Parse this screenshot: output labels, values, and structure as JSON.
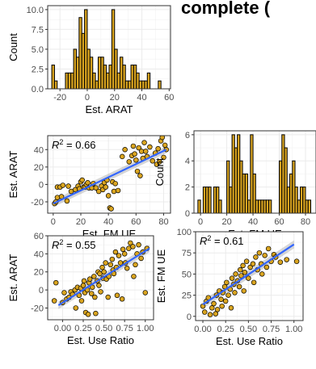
{
  "header_fragment": "complete (",
  "colors": {
    "bar_fill": "#DAA520",
    "bar_stroke": "#000000",
    "point_fill": "#DAA520",
    "fit_line": "#3366FF",
    "ribbon": "#999999",
    "grid": "#EBEBEB",
    "panel_border": "#333333"
  },
  "chart_data": [
    {
      "id": "hist_arat",
      "type": "bar",
      "subtype": "histogram",
      "xlabel": "Est. ARAT",
      "ylabel": "Count",
      "xlim": [
        -29,
        61
      ],
      "ylim": [
        0,
        10.5
      ],
      "xticks": [
        -20,
        0,
        20,
        40,
        60
      ],
      "yticks": [
        0.0,
        2.5,
        5.0,
        7.5,
        10.0
      ],
      "ytick_labels": [
        "0.0",
        "2.5",
        "5.0",
        "7.5",
        "10.0"
      ],
      "bin_width": 2,
      "bin_start": -26,
      "counts": [
        3,
        1,
        0,
        0,
        0,
        2,
        2,
        2,
        5,
        4,
        9,
        7,
        10,
        5,
        4,
        2,
        1,
        4,
        4,
        3,
        2,
        3,
        10,
        5,
        2,
        4,
        3,
        1,
        1,
        3,
        3,
        2,
        1,
        1,
        1,
        2,
        0,
        0,
        0,
        1,
        0,
        0
      ]
    },
    {
      "id": "scatter_fm_arat",
      "type": "scatter",
      "xlabel": "Est. FM UE",
      "ylabel": "Est. ARAT",
      "annotation": "R² = 0.66",
      "r2_prefix": "R",
      "r2_sup": "2",
      "r2_value": " = 0.66",
      "xlim": [
        -4,
        85
      ],
      "ylim": [
        -33,
        56
      ],
      "xticks": [
        0,
        20,
        40,
        60,
        80
      ],
      "yticks": [
        -20,
        0,
        20,
        40
      ],
      "fit": {
        "x0": 0,
        "y0": -22,
        "x1": 82,
        "y1": 40
      },
      "points": [
        [
          1,
          -22
        ],
        [
          2,
          -20
        ],
        [
          3,
          -3
        ],
        [
          3,
          -15
        ],
        [
          5,
          -3
        ],
        [
          6,
          -14
        ],
        [
          7,
          -1
        ],
        [
          10,
          -19
        ],
        [
          11,
          -2
        ],
        [
          13,
          -8
        ],
        [
          16,
          -6
        ],
        [
          18,
          -2
        ],
        [
          19,
          -5
        ],
        [
          20,
          3
        ],
        [
          21,
          5
        ],
        [
          22,
          -3
        ],
        [
          23,
          -3
        ],
        [
          24,
          0
        ],
        [
          25,
          2
        ],
        [
          26,
          -4
        ],
        [
          28,
          -4
        ],
        [
          29,
          1
        ],
        [
          31,
          -4
        ],
        [
          33,
          -8
        ],
        [
          35,
          -2
        ],
        [
          36,
          -6
        ],
        [
          37,
          2
        ],
        [
          38,
          -3
        ],
        [
          39,
          5
        ],
        [
          40,
          -13
        ],
        [
          41,
          -27
        ],
        [
          42,
          -28
        ],
        [
          43,
          3
        ],
        [
          44,
          -8
        ],
        [
          45,
          1
        ],
        [
          47,
          -7
        ],
        [
          50,
          32
        ],
        [
          52,
          40
        ],
        [
          55,
          26
        ],
        [
          57,
          33
        ],
        [
          58,
          44
        ],
        [
          59,
          35
        ],
        [
          60,
          28
        ],
        [
          61,
          15
        ],
        [
          62,
          42
        ],
        [
          63,
          10
        ],
        [
          64,
          38
        ],
        [
          65,
          30
        ],
        [
          66,
          48
        ],
        [
          67,
          38
        ],
        [
          68,
          32
        ],
        [
          70,
          43
        ],
        [
          72,
          27
        ],
        [
          74,
          36
        ],
        [
          75,
          23
        ],
        [
          76,
          41
        ],
        [
          77,
          26
        ],
        [
          78,
          50
        ],
        [
          79,
          54
        ],
        [
          80,
          31
        ],
        [
          81,
          45
        ],
        [
          82,
          40
        ]
      ]
    },
    {
      "id": "hist_fm",
      "type": "bar",
      "subtype": "histogram",
      "xlabel": "Est. FM UE",
      "ylabel": "Count",
      "xlim": [
        -5,
        88
      ],
      "ylim": [
        0,
        6.3
      ],
      "xticks": [
        0,
        20,
        40,
        60,
        80
      ],
      "yticks": [
        0,
        2,
        4,
        6
      ],
      "ytick_labels": [
        "0",
        "2",
        "4",
        "6"
      ],
      "bin_width": 2,
      "bin_start": -2,
      "counts": [
        1,
        0,
        2,
        2,
        2,
        0,
        2,
        2,
        1,
        0,
        0,
        4,
        2,
        6,
        5,
        6,
        4,
        3,
        3,
        1,
        6,
        3,
        1,
        1,
        1,
        1,
        1,
        1,
        0,
        0,
        0,
        4,
        6,
        5,
        2,
        3,
        4,
        2,
        1,
        2,
        2,
        1,
        1
      ]
    },
    {
      "id": "scatter_use_arat",
      "type": "scatter",
      "xlabel": "Est. Use Ratio",
      "ylabel": "Est. ARAT",
      "annotation": "R² = 0.55",
      "r2_prefix": "R",
      "r2_sup": "2",
      "r2_value": " = 0.55",
      "xlim": [
        -0.18,
        1.1
      ],
      "ylim": [
        -33,
        60
      ],
      "xticks": [
        0.0,
        0.25,
        0.5,
        0.75,
        1.0
      ],
      "xtick_labels": [
        "0.00",
        "0.25",
        "0.50",
        "0.75",
        "1.00"
      ],
      "yticks": [
        -20,
        0,
        20,
        40,
        60
      ],
      "fit": {
        "x0": -0.05,
        "y0": -17,
        "x1": 1.05,
        "y1": 46
      },
      "points": [
        [
          -0.1,
          -12
        ],
        [
          -0.08,
          8
        ],
        [
          0.0,
          -14
        ],
        [
          0.02,
          -3
        ],
        [
          0.05,
          -10
        ],
        [
          0.08,
          -8
        ],
        [
          0.1,
          -2
        ],
        [
          0.12,
          -5
        ],
        [
          0.15,
          0
        ],
        [
          0.16,
          -20
        ],
        [
          0.18,
          3
        ],
        [
          0.2,
          -6
        ],
        [
          0.22,
          2
        ],
        [
          0.23,
          -12
        ],
        [
          0.25,
          5
        ],
        [
          0.26,
          10
        ],
        [
          0.27,
          -3
        ],
        [
          0.28,
          -25
        ],
        [
          0.3,
          0
        ],
        [
          0.31,
          -27
        ],
        [
          0.32,
          8
        ],
        [
          0.33,
          12
        ],
        [
          0.35,
          -4
        ],
        [
          0.36,
          3
        ],
        [
          0.38,
          15
        ],
        [
          0.39,
          -8
        ],
        [
          0.4,
          -26
        ],
        [
          0.42,
          10
        ],
        [
          0.43,
          20
        ],
        [
          0.44,
          5
        ],
        [
          0.45,
          18
        ],
        [
          0.46,
          -2
        ],
        [
          0.48,
          25
        ],
        [
          0.49,
          13
        ],
        [
          0.5,
          20
        ],
        [
          0.52,
          30
        ],
        [
          0.53,
          12
        ],
        [
          0.55,
          -8
        ],
        [
          0.56,
          15
        ],
        [
          0.58,
          28
        ],
        [
          0.6,
          34
        ],
        [
          0.61,
          22
        ],
        [
          0.62,
          18
        ],
        [
          0.64,
          42
        ],
        [
          0.65,
          25
        ],
        [
          0.66,
          -6
        ],
        [
          0.68,
          38
        ],
        [
          0.7,
          30
        ],
        [
          0.72,
          -10
        ],
        [
          0.73,
          45
        ],
        [
          0.75,
          40
        ],
        [
          0.76,
          30
        ],
        [
          0.78,
          24
        ],
        [
          0.8,
          46
        ],
        [
          0.82,
          52
        ],
        [
          0.85,
          48
        ],
        [
          0.86,
          15
        ],
        [
          0.88,
          28
        ],
        [
          0.9,
          40
        ],
        [
          0.92,
          50
        ],
        [
          0.95,
          35
        ],
        [
          0.97,
          42
        ],
        [
          1.0,
          -3
        ],
        [
          1.02,
          46
        ]
      ]
    },
    {
      "id": "scatter_use_fm",
      "type": "scatter",
      "xlabel": "Est. Use Ratio",
      "ylabel": "Est. FM UE",
      "annotation": "R² = 0.61",
      "r2_prefix": "R",
      "r2_sup": "2",
      "r2_value": " = 0.61",
      "xlim": [
        -0.08,
        1.1
      ],
      "ylim": [
        -5,
        100
      ],
      "xticks": [
        0.0,
        0.25,
        0.5,
        0.75,
        1.0
      ],
      "xtick_labels": [
        "0.00",
        "0.25",
        "0.50",
        "0.75",
        "1.00"
      ],
      "yticks": [
        0,
        25,
        50,
        75,
        100
      ],
      "fit": {
        "x0": 0.0,
        "y0": 14,
        "x1": 1.0,
        "y1": 85
      },
      "points": [
        [
          0.0,
          12
        ],
        [
          0.02,
          5
        ],
        [
          0.04,
          18
        ],
        [
          0.06,
          22
        ],
        [
          0.08,
          2
        ],
        [
          0.1,
          10
        ],
        [
          0.12,
          15
        ],
        [
          0.14,
          3
        ],
        [
          0.15,
          25
        ],
        [
          0.16,
          8
        ],
        [
          0.18,
          30
        ],
        [
          0.2,
          20
        ],
        [
          0.21,
          12
        ],
        [
          0.22,
          28
        ],
        [
          0.24,
          35
        ],
        [
          0.25,
          18
        ],
        [
          0.26,
          40
        ],
        [
          0.28,
          25
        ],
        [
          0.3,
          32
        ],
        [
          0.31,
          10
        ],
        [
          0.32,
          45
        ],
        [
          0.34,
          38
        ],
        [
          0.35,
          28
        ],
        [
          0.36,
          50
        ],
        [
          0.38,
          42
        ],
        [
          0.4,
          35
        ],
        [
          0.41,
          55
        ],
        [
          0.42,
          48
        ],
        [
          0.44,
          60
        ],
        [
          0.45,
          30
        ],
        [
          0.46,
          52
        ],
        [
          0.48,
          65
        ],
        [
          0.5,
          45
        ],
        [
          0.52,
          58
        ],
        [
          0.55,
          62
        ],
        [
          0.56,
          40
        ],
        [
          0.58,
          70
        ],
        [
          0.6,
          55
        ],
        [
          0.62,
          75
        ],
        [
          0.64,
          62
        ],
        [
          0.65,
          50
        ],
        [
          0.68,
          72
        ],
        [
          0.7,
          58
        ],
        [
          0.72,
          80
        ],
        [
          0.75,
          65
        ],
        [
          0.78,
          73
        ],
        [
          0.8,
          70
        ],
        [
          0.85,
          64
        ],
        [
          0.92,
          67
        ],
        [
          1.03,
          65
        ]
      ]
    }
  ]
}
